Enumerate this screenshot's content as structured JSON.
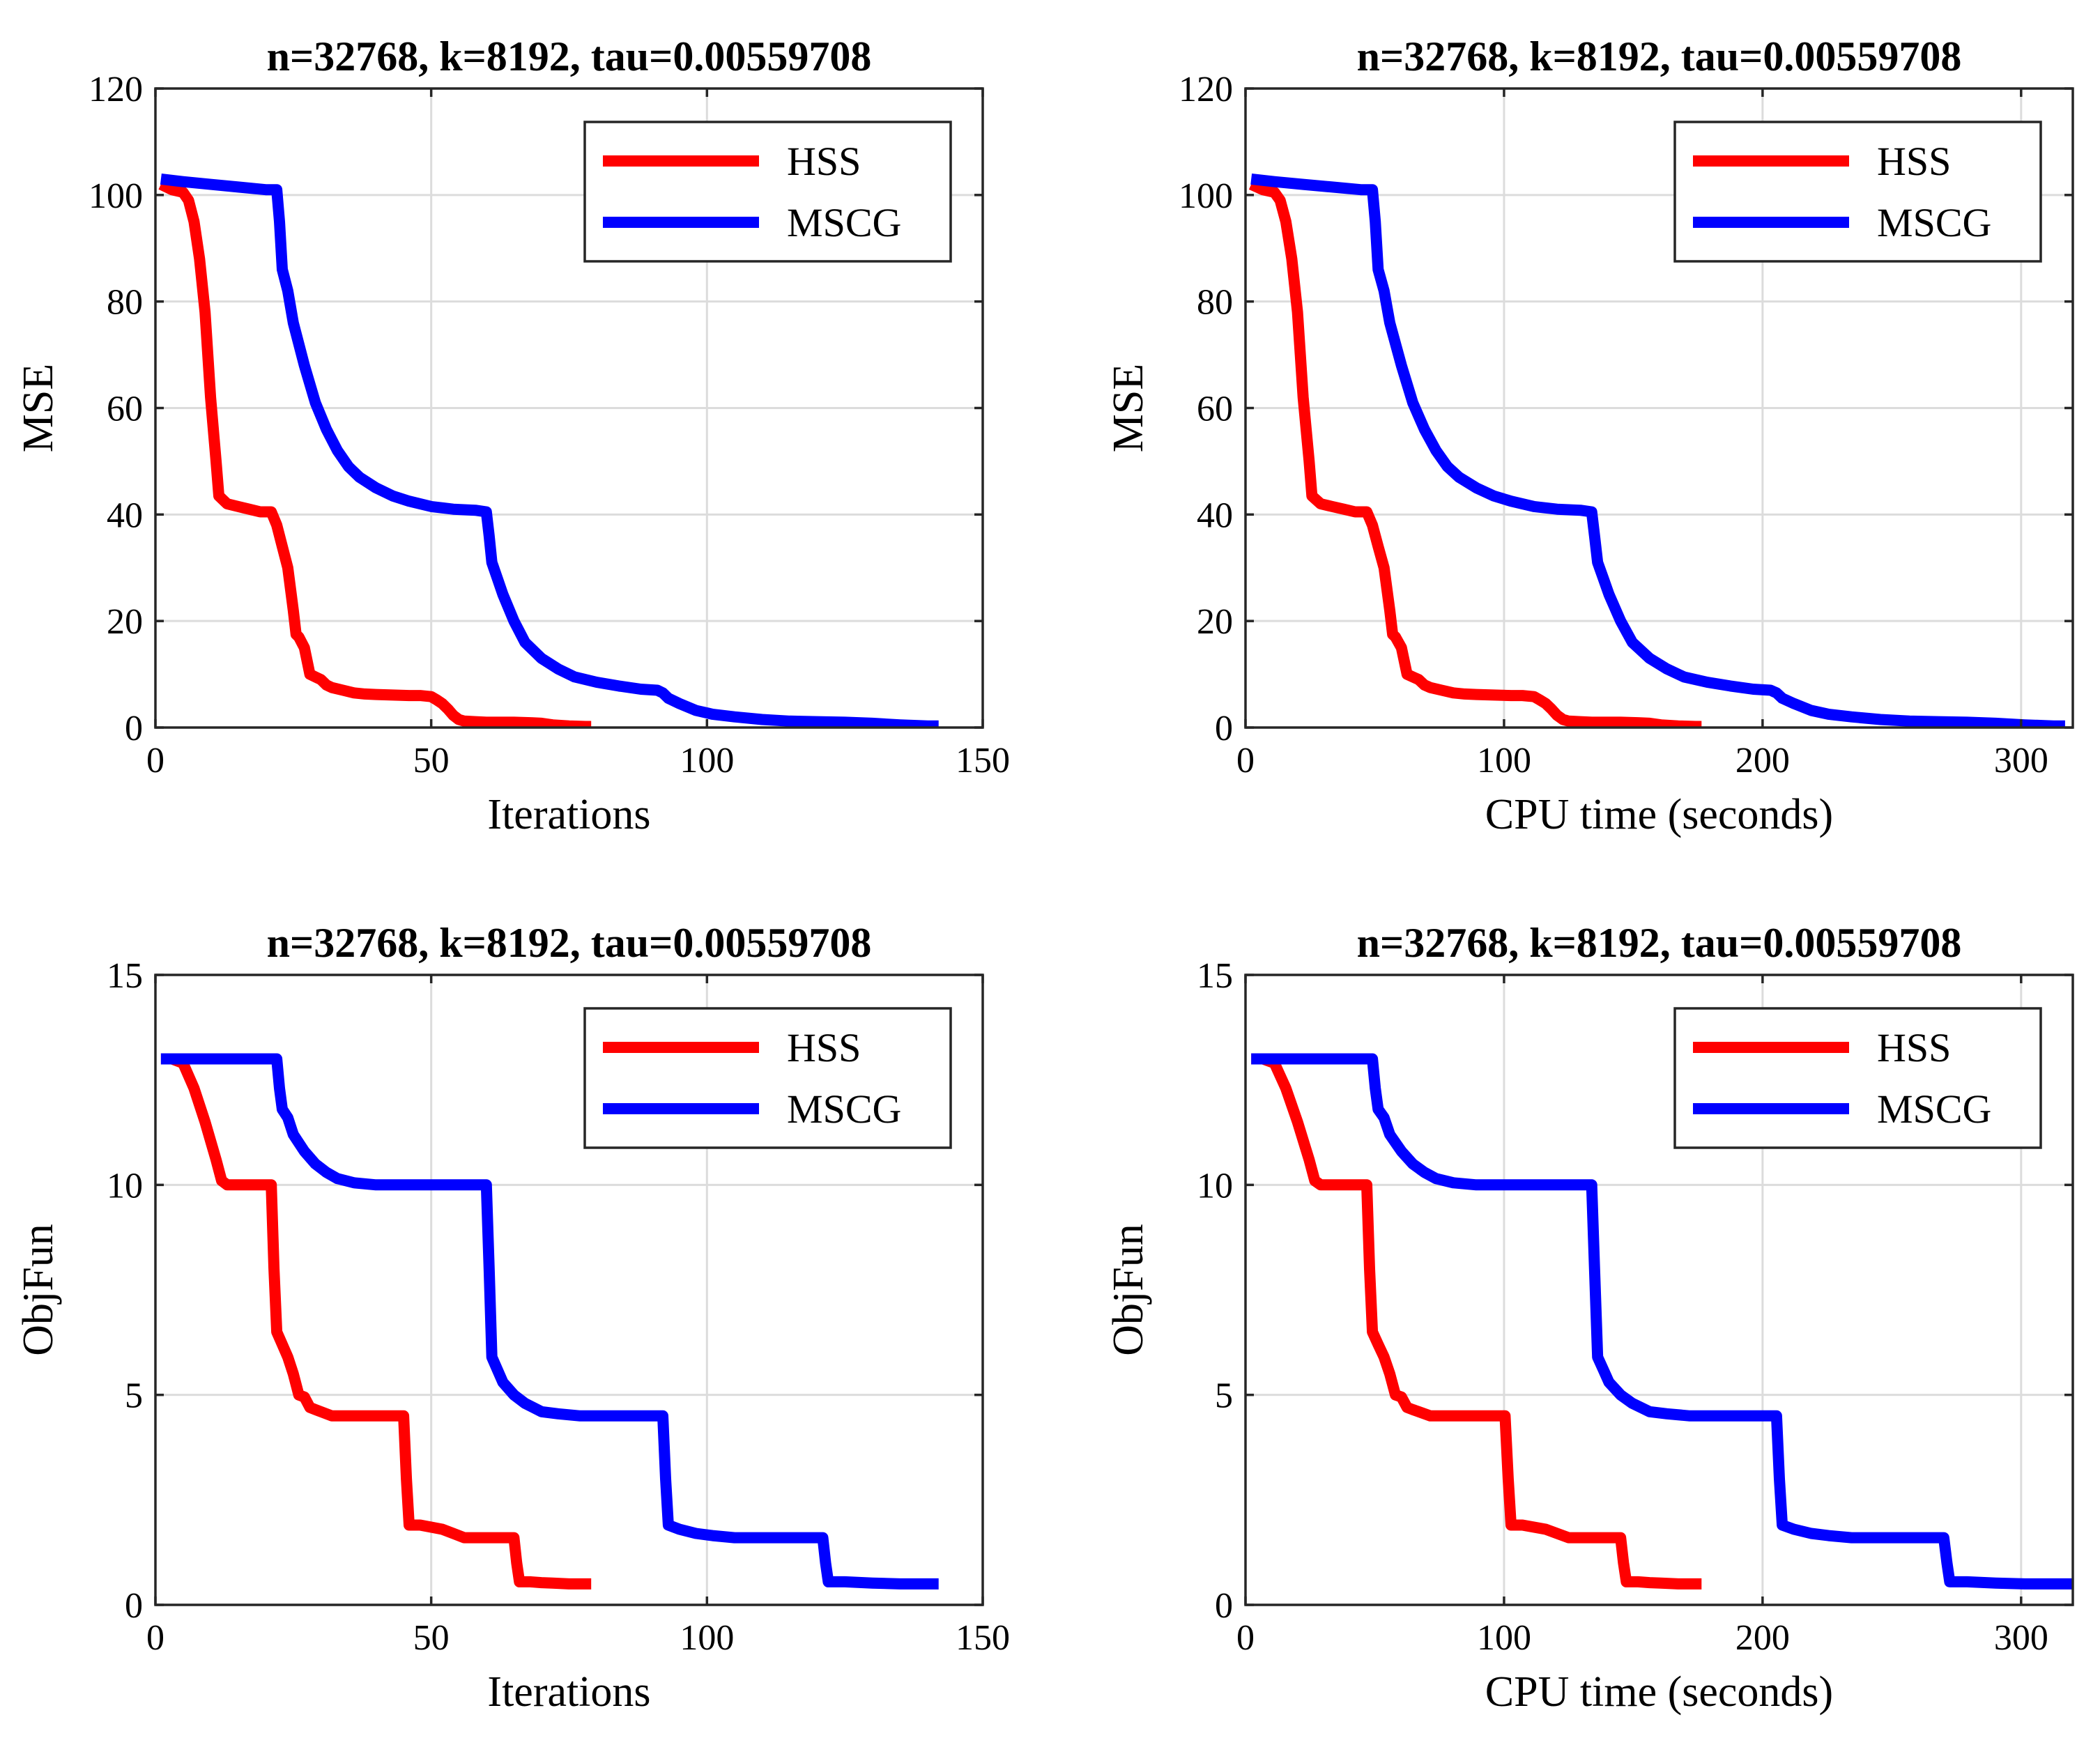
{
  "colors": {
    "HSS": "#ff0000",
    "MSCG": "#0000ff"
  },
  "chart_data": [
    {
      "type": "line",
      "title": "n=32768, k=8192, tau=0.00559708",
      "xlabel": "Iterations",
      "ylabel": "MSE",
      "xlim": [
        0,
        150
      ],
      "ylim": [
        0,
        120
      ],
      "xticks": [
        0,
        50,
        100,
        150
      ],
      "yticks": [
        0,
        20,
        40,
        60,
        80,
        100,
        120
      ],
      "xtick_labels": [
        "0",
        "50",
        "100",
        "150"
      ],
      "ytick_labels": [
        "0",
        "20",
        "40",
        "60",
        "80",
        "100",
        "120"
      ],
      "grid": true,
      "legend": "top-right",
      "series": [
        {
          "name": "HSS",
          "color": "#ff0000",
          "x": [
            1,
            3,
            5,
            6,
            7,
            8,
            9,
            10,
            11,
            11.5,
            12,
            13,
            15,
            17,
            19,
            21,
            22,
            23,
            24,
            25,
            25.5,
            26,
            27,
            28,
            29,
            30,
            31,
            32,
            34,
            36,
            38,
            40,
            43,
            46,
            48,
            50,
            51,
            52,
            53,
            54,
            55,
            56,
            58,
            60,
            62,
            65,
            68,
            70,
            72,
            75,
            78,
            79
          ],
          "y": [
            102,
            101,
            100.5,
            99,
            95,
            88,
            78,
            62,
            50,
            43.5,
            43,
            42,
            41.5,
            41,
            40.5,
            40.5,
            38,
            34,
            30,
            22,
            17.5,
            17,
            15,
            10,
            9.5,
            9,
            8,
            7.5,
            7,
            6.5,
            6.3,
            6.2,
            6.1,
            6,
            6,
            5.8,
            5.2,
            4.5,
            3.5,
            2.3,
            1.5,
            1.2,
            1.1,
            1.0,
            1.0,
            1.0,
            0.9,
            0.8,
            0.5,
            0.3,
            0.2,
            0.2
          ]
        },
        {
          "name": "MSCG",
          "color": "#0000ff",
          "x": [
            1,
            5,
            10,
            15,
            20,
            22,
            22.5,
            23,
            24,
            25,
            27,
            29,
            31,
            33,
            35,
            37,
            40,
            43,
            46,
            50,
            54,
            58,
            60,
            60.5,
            61,
            62,
            63,
            65,
            67,
            70,
            73,
            76,
            80,
            84,
            88,
            91,
            92,
            93,
            95,
            98,
            101,
            105,
            110,
            115,
            120,
            125,
            130,
            135,
            140,
            142
          ],
          "y": [
            103,
            102.5,
            102,
            101.5,
            101,
            101,
            95,
            86,
            82,
            76,
            68,
            61,
            56,
            52,
            49,
            47,
            45,
            43.5,
            42.5,
            41.5,
            41,
            40.8,
            40.5,
            36,
            31,
            28,
            25,
            20,
            16,
            13,
            11,
            9.5,
            8.5,
            7.8,
            7.2,
            7,
            6.5,
            5.5,
            4.5,
            3.2,
            2.5,
            2,
            1.5,
            1.2,
            1.1,
            1,
            0.8,
            0.5,
            0.3,
            0.3
          ]
        }
      ]
    },
    {
      "type": "line",
      "title": "n=32768, k=8192, tau=0.00559708",
      "xlabel": "CPU time (seconds)",
      "ylabel": "MSE",
      "xlim": [
        0,
        320
      ],
      "ylim": [
        0,
        120
      ],
      "xticks": [
        0,
        100,
        200,
        300
      ],
      "yticks": [
        0,
        20,
        40,
        60,
        80,
        100,
        120
      ],
      "xtick_labels": [
        "0",
        "100",
        "200",
        "300"
      ],
      "ytick_labels": [
        "0",
        "20",
        "40",
        "60",
        "80",
        "100",
        "120"
      ],
      "grid": true,
      "legend": "top-right",
      "series": [
        {
          "name": "HSS",
          "color": "#ff0000",
          "x": [
            2.2,
            6.7,
            11.2,
            13.4,
            15.6,
            17.9,
            20.1,
            22.3,
            24.6,
            25.7,
            26.8,
            29.1,
            33.5,
            38,
            42.4,
            46.9,
            49.1,
            51.3,
            53.6,
            55.8,
            56.9,
            58,
            60.3,
            62.5,
            64.7,
            67,
            69.2,
            71.5,
            75.9,
            80.4,
            84.8,
            89.3,
            96,
            102.7,
            107.1,
            111.6,
            113.8,
            116.1,
            118.3,
            120.5,
            122.8,
            125,
            129.5,
            133.9,
            138.4,
            145.1,
            151.8,
            156.3,
            160.7,
            167.4,
            174.1,
            176.4
          ],
          "y": [
            102,
            101,
            100.5,
            99,
            95,
            88,
            78,
            62,
            50,
            43.5,
            43,
            42,
            41.5,
            41,
            40.5,
            40.5,
            38,
            34,
            30,
            22,
            17.5,
            17,
            15,
            10,
            9.5,
            9,
            8,
            7.5,
            7,
            6.5,
            6.3,
            6.2,
            6.1,
            6,
            6,
            5.8,
            5.2,
            4.5,
            3.5,
            2.3,
            1.5,
            1.2,
            1.1,
            1.0,
            1.0,
            1.0,
            0.9,
            0.8,
            0.5,
            0.3,
            0.2,
            0.2
          ]
        },
        {
          "name": "MSCG",
          "color": "#0000ff",
          "x": [
            2.2,
            11.2,
            22.3,
            33.5,
            44.6,
            49.1,
            50.2,
            51.3,
            53.6,
            55.8,
            60.3,
            64.7,
            69.2,
            73.7,
            78.1,
            82.6,
            89.3,
            96,
            102.7,
            111.6,
            120.5,
            129.5,
            133.9,
            135,
            136.2,
            138.4,
            140.6,
            145.1,
            149.6,
            156.3,
            163,
            169.6,
            178.6,
            187.5,
            196.4,
            203.1,
            205.4,
            207.6,
            212.1,
            218.8,
            225.5,
            234.4,
            245.6,
            256.8,
            267.9,
            279.1,
            290.2,
            301.4,
            312.5,
            317
          ],
          "y": [
            103,
            102.5,
            102,
            101.5,
            101,
            101,
            95,
            86,
            82,
            76,
            68,
            61,
            56,
            52,
            49,
            47,
            45,
            43.5,
            42.5,
            41.5,
            41,
            40.8,
            40.5,
            36,
            31,
            28,
            25,
            20,
            16,
            13,
            11,
            9.5,
            8.5,
            7.8,
            7.2,
            7,
            6.5,
            5.5,
            4.5,
            3.2,
            2.5,
            2,
            1.5,
            1.2,
            1.1,
            1,
            0.8,
            0.5,
            0.3,
            0.3
          ]
        }
      ]
    },
    {
      "type": "line",
      "title": "n=32768, k=8192, tau=0.00559708",
      "xlabel": "Iterations",
      "ylabel": "ObjFun",
      "xlim": [
        0,
        150
      ],
      "ylim": [
        0,
        15
      ],
      "xticks": [
        0,
        50,
        100,
        150
      ],
      "yticks": [
        0,
        5,
        10,
        15
      ],
      "xtick_labels": [
        "0",
        "50",
        "100",
        "150"
      ],
      "ytick_labels": [
        "0",
        "5",
        "10",
        "15"
      ],
      "grid": true,
      "legend": "top-right",
      "series": [
        {
          "name": "HSS",
          "color": "#ff0000",
          "x": [
            1,
            3,
            5,
            7,
            9,
            11,
            12,
            13,
            15,
            17,
            19,
            21,
            21.5,
            22,
            23,
            24,
            25,
            26,
            27,
            28,
            29,
            30,
            32,
            35,
            38,
            42,
            45,
            45.5,
            46,
            48,
            50,
            52,
            54,
            56,
            58,
            60,
            63,
            65,
            65.5,
            66,
            68,
            70,
            72,
            75,
            78,
            79
          ],
          "y": [
            13,
            13,
            12.9,
            12.3,
            11.5,
            10.6,
            10.1,
            10,
            10,
            10,
            10,
            10,
            8,
            6.5,
            6.2,
            5.9,
            5.5,
            5.0,
            4.95,
            4.7,
            4.65,
            4.6,
            4.5,
            4.5,
            4.5,
            4.5,
            4.5,
            3.0,
            1.9,
            1.9,
            1.85,
            1.8,
            1.7,
            1.6,
            1.6,
            1.6,
            1.6,
            1.6,
            1.0,
            0.55,
            0.55,
            0.53,
            0.52,
            0.5,
            0.5,
            0.5
          ]
        },
        {
          "name": "MSCG",
          "color": "#0000ff",
          "x": [
            1,
            5,
            10,
            15,
            20,
            22,
            22.5,
            23,
            24,
            25,
            27,
            29,
            31,
            33,
            36,
            40,
            45,
            50,
            55,
            60,
            60.5,
            61,
            62,
            63,
            65,
            67,
            70,
            73,
            77,
            80,
            85,
            90,
            92,
            92.5,
            93,
            95,
            98,
            101,
            105,
            110,
            115,
            120,
            121,
            121.5,
            122,
            125,
            130,
            135,
            140,
            142
          ],
          "y": [
            13,
            13,
            13,
            13,
            13,
            13,
            12.3,
            11.8,
            11.6,
            11.2,
            10.8,
            10.5,
            10.3,
            10.15,
            10.05,
            10,
            10,
            10,
            10,
            10,
            8,
            5.9,
            5.6,
            5.3,
            5.0,
            4.8,
            4.6,
            4.55,
            4.5,
            4.5,
            4.5,
            4.5,
            4.5,
            3.0,
            1.9,
            1.8,
            1.7,
            1.65,
            1.6,
            1.6,
            1.6,
            1.6,
            1.6,
            1.0,
            0.55,
            0.55,
            0.52,
            0.5,
            0.5,
            0.5
          ]
        }
      ]
    },
    {
      "type": "line",
      "title": "n=32768, k=8192, tau=0.00559708",
      "xlabel": "CPU time (seconds)",
      "ylabel": "ObjFun",
      "xlim": [
        0,
        320
      ],
      "ylim": [
        0,
        15
      ],
      "xticks": [
        0,
        100,
        200,
        300
      ],
      "yticks": [
        0,
        5,
        10,
        15
      ],
      "xtick_labels": [
        "0",
        "100",
        "200",
        "300"
      ],
      "ytick_labels": [
        "0",
        "5",
        "10",
        "15"
      ],
      "grid": true,
      "legend": "top-right",
      "series": [
        {
          "name": "HSS",
          "color": "#ff0000",
          "x": [
            2.2,
            6.7,
            11.2,
            15.6,
            20.1,
            24.6,
            26.8,
            29.1,
            33.5,
            38,
            42.4,
            46.9,
            48,
            49.1,
            51.3,
            53.6,
            55.8,
            58,
            60.3,
            62.5,
            64.7,
            67,
            71.5,
            78.1,
            84.8,
            93.8,
            100.4,
            101.6,
            102.7,
            107.1,
            111.6,
            116.1,
            120.5,
            125,
            129.5,
            133.9,
            140.6,
            145.1,
            146.2,
            147.3,
            151.8,
            156.3,
            160.7,
            167.4,
            174.1,
            176.4
          ],
          "y": [
            13,
            13,
            12.9,
            12.3,
            11.5,
            10.6,
            10.1,
            10,
            10,
            10,
            10,
            10,
            8,
            6.5,
            6.2,
            5.9,
            5.5,
            5.0,
            4.95,
            4.7,
            4.65,
            4.6,
            4.5,
            4.5,
            4.5,
            4.5,
            4.5,
            3.0,
            1.9,
            1.9,
            1.85,
            1.8,
            1.7,
            1.6,
            1.6,
            1.6,
            1.6,
            1.6,
            1.0,
            0.55,
            0.55,
            0.53,
            0.52,
            0.5,
            0.5,
            0.5
          ]
        },
        {
          "name": "MSCG",
          "color": "#0000ff",
          "x": [
            2.2,
            11.2,
            22.3,
            33.5,
            44.6,
            49.1,
            50.2,
            51.3,
            53.6,
            55.8,
            60.3,
            64.7,
            69.2,
            73.7,
            80.4,
            89.3,
            100.4,
            111.6,
            122.8,
            133.9,
            135,
            136.2,
            138.4,
            140.6,
            145.1,
            149.6,
            156.3,
            163,
            171.9,
            178.6,
            189.7,
            200.9,
            205.4,
            206.5,
            207.6,
            212.1,
            218.8,
            225.5,
            234.4,
            245.6,
            256.8,
            267.9,
            270.1,
            271.3,
            272.4,
            279.1,
            290.2,
            301.4,
            312.5,
            320
          ],
          "y": [
            13,
            13,
            13,
            13,
            13,
            13,
            12.3,
            11.8,
            11.6,
            11.2,
            10.8,
            10.5,
            10.3,
            10.15,
            10.05,
            10,
            10,
            10,
            10,
            10,
            8,
            5.9,
            5.6,
            5.3,
            5.0,
            4.8,
            4.6,
            4.55,
            4.5,
            4.5,
            4.5,
            4.5,
            4.5,
            3.0,
            1.9,
            1.8,
            1.7,
            1.65,
            1.6,
            1.6,
            1.6,
            1.6,
            1.6,
            1.0,
            0.55,
            0.55,
            0.52,
            0.5,
            0.5,
            0.5
          ]
        }
      ]
    }
  ]
}
